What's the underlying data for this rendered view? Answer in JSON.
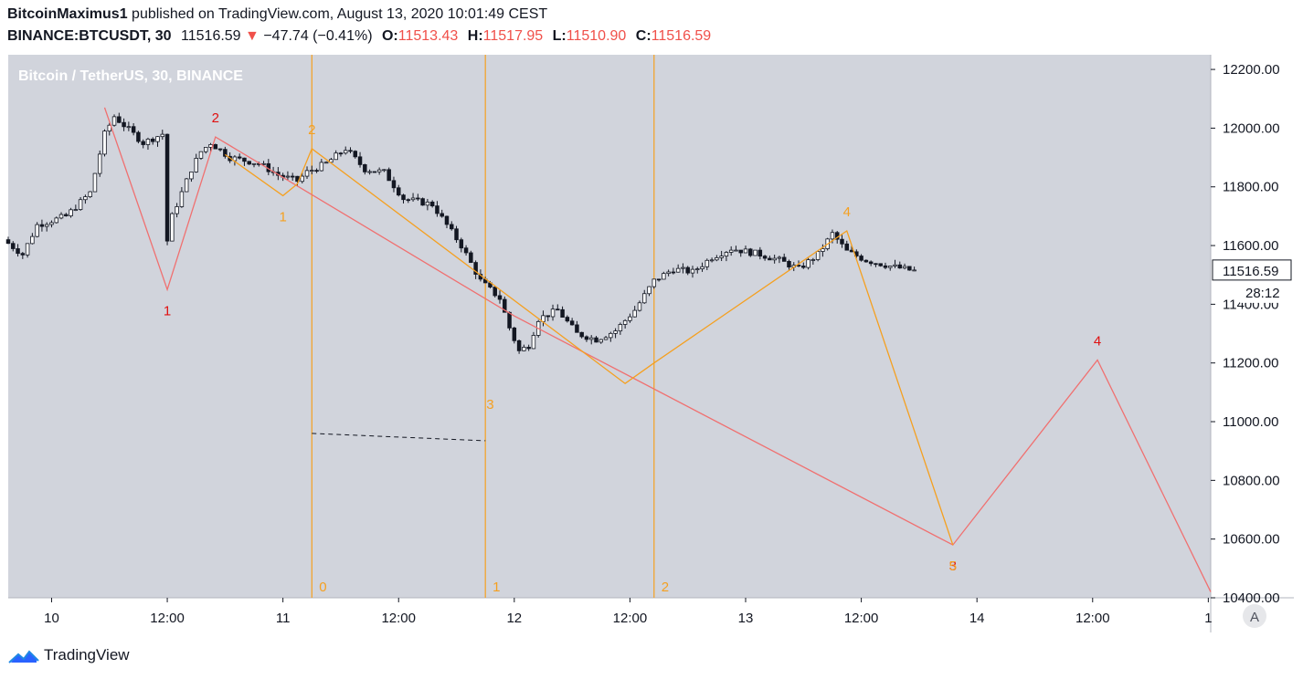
{
  "header": {
    "author": "BitcoinMaximus1",
    "published_text": "published on TradingView.com, August 13, 2020 10:01:49 CEST",
    "symbol": "BINANCE:BTCUSDT, 30",
    "last_price": "11516.59",
    "change_arrow": "▼",
    "change": "−47.74 (−0.41%)",
    "o_label": "O:",
    "o_value": "11513.43",
    "h_label": "H:",
    "h_value": "11517.95",
    "l_label": "L:",
    "l_value": "11510.90",
    "c_label": "C:",
    "c_value": "11516.59"
  },
  "footer": {
    "brand": "TradingView"
  },
  "colors": {
    "plot_bg": "#d1d4dc",
    "red_wave": "#f07070",
    "orange_wave": "#f5a020",
    "down_red": "#f0504a",
    "candle": "#131722"
  },
  "chart_data": {
    "type": "candlestick",
    "title": "Bitcoin / TetherUS, 30, BINANCE",
    "y_axis": {
      "range": [
        10400,
        12250
      ],
      "ticks": [
        "10400.00",
        "10600.00",
        "10800.00",
        "11000.00",
        "11200.00",
        "11400.00",
        "11600.00",
        "11800.00",
        "12000.00",
        "12200.00"
      ],
      "last_price_label": "11516.59",
      "countdown_label": "28:12"
    },
    "x_axis": {
      "range": [
        "2020-08-09T19:30",
        "2020-08-15T00:15"
      ],
      "ticks": [
        {
          "t": "2020-08-10T00:00",
          "label": "10"
        },
        {
          "t": "2020-08-10T12:00",
          "label": "12:00"
        },
        {
          "t": "2020-08-11T00:00",
          "label": "11"
        },
        {
          "t": "2020-08-11T12:00",
          "label": "12:00"
        },
        {
          "t": "2020-08-12T00:00",
          "label": "12"
        },
        {
          "t": "2020-08-12T12:00",
          "label": "12:00"
        },
        {
          "t": "2020-08-13T00:00",
          "label": "13"
        },
        {
          "t": "2020-08-13T12:00",
          "label": "12:00"
        },
        {
          "t": "2020-08-14T00:00",
          "label": "14"
        },
        {
          "t": "2020-08-14T12:00",
          "label": "12:00"
        },
        {
          "t": "2020-08-15T00:00",
          "label": "1"
        }
      ],
      "auto_scale_label": "A"
    },
    "price_path": [
      [
        "2020-08-09T19:30",
        11620
      ],
      [
        "2020-08-09T21:30",
        11570
      ],
      [
        "2020-08-09T23:00",
        11670
      ],
      [
        "2020-08-10T02:00",
        11700
      ],
      [
        "2020-08-10T04:30",
        11780
      ],
      [
        "2020-08-10T06:00",
        11980
      ],
      [
        "2020-08-10T07:00",
        12040
      ],
      [
        "2020-08-10T08:00",
        12010
      ],
      [
        "2020-08-10T10:00",
        11950
      ],
      [
        "2020-08-10T12:00",
        11980
      ],
      [
        "2020-08-10T12:10",
        11560
      ],
      [
        "2020-08-10T13:00",
        11700
      ],
      [
        "2020-08-10T15:00",
        11860
      ],
      [
        "2020-08-10T16:00",
        11920
      ],
      [
        "2020-08-10T17:00",
        11950
      ],
      [
        "2020-08-10T19:00",
        11900
      ],
      [
        "2020-08-10T22:00",
        11880
      ],
      [
        "2020-08-11T00:00",
        11840
      ],
      [
        "2020-08-11T02:00",
        11820
      ],
      [
        "2020-08-11T03:00",
        11850
      ],
      [
        "2020-08-11T05:00",
        11880
      ],
      [
        "2020-08-11T07:00",
        11930
      ],
      [
        "2020-08-11T09:00",
        11860
      ],
      [
        "2020-08-11T11:00",
        11850
      ],
      [
        "2020-08-11T13:00",
        11760
      ],
      [
        "2020-08-11T16:00",
        11740
      ],
      [
        "2020-08-11T19:00",
        11600
      ],
      [
        "2020-08-11T21:00",
        11480
      ],
      [
        "2020-08-11T23:00",
        11420
      ],
      [
        "2020-08-12T00:00",
        11320
      ],
      [
        "2020-08-12T01:00",
        11240
      ],
      [
        "2020-08-12T02:00",
        11260
      ],
      [
        "2020-08-12T03:00",
        11350
      ],
      [
        "2020-08-12T05:00",
        11380
      ],
      [
        "2020-08-12T07:00",
        11300
      ],
      [
        "2020-08-12T09:00",
        11280
      ],
      [
        "2020-08-12T11:00",
        11310
      ],
      [
        "2020-08-12T13:00",
        11380
      ],
      [
        "2020-08-12T15:00",
        11480
      ],
      [
        "2020-08-12T17:00",
        11520
      ],
      [
        "2020-08-12T19:00",
        11510
      ],
      [
        "2020-08-12T21:00",
        11560
      ],
      [
        "2020-08-12T23:00",
        11590
      ],
      [
        "2020-08-13T02:00",
        11570
      ],
      [
        "2020-08-13T04:00",
        11550
      ],
      [
        "2020-08-13T06:00",
        11520
      ],
      [
        "2020-08-13T08:00",
        11570
      ],
      [
        "2020-08-13T09:30",
        11640
      ],
      [
        "2020-08-13T11:00",
        11580
      ],
      [
        "2020-08-13T13:00",
        11550
      ],
      [
        "2020-08-13T15:30",
        11530
      ],
      [
        "2020-08-13T17:30",
        11516.59
      ]
    ],
    "wave_red": {
      "points": [
        [
          "2020-08-10T05:30",
          12070
        ],
        [
          "2020-08-10T12:00",
          11450
        ],
        [
          "2020-08-10T17:00",
          11970
        ],
        [
          "2020-08-12T00:00",
          11360
        ],
        [
          "2020-08-13T21:30",
          10580
        ],
        [
          "2020-08-14T12:30",
          11210
        ],
        [
          "2020-08-15T00:15",
          10420
        ]
      ],
      "labels": [
        {
          "t": "2020-08-10T12:00",
          "p": 11450,
          "text": "1",
          "pos": "below"
        },
        {
          "t": "2020-08-10T17:00",
          "p": 11970,
          "text": "2",
          "pos": "above"
        },
        {
          "t": "2020-08-13T21:30",
          "p": 10580,
          "text": "3",
          "pos": "below"
        },
        {
          "t": "2020-08-14T12:30",
          "p": 11210,
          "text": "4",
          "pos": "above"
        }
      ]
    },
    "wave_orange": {
      "points": [
        [
          "2020-08-10T18:00",
          11910
        ],
        [
          "2020-08-11T00:00",
          11770
        ],
        [
          "2020-08-11T01:30",
          11810
        ],
        [
          "2020-08-11T03:00",
          11930
        ],
        [
          "2020-08-12T11:30",
          11130
        ],
        [
          "2020-08-12T14:30",
          11200
        ],
        [
          "2020-08-13T10:30",
          11650
        ],
        [
          "2020-08-13T21:30",
          10580
        ]
      ],
      "labels": [
        {
          "t": "2020-08-11T00:00",
          "p": 11770,
          "text": "1",
          "pos": "below"
        },
        {
          "t": "2020-08-11T03:00",
          "p": 11930,
          "text": "2",
          "pos": "above"
        },
        {
          "t": "2020-08-11T21:30",
          "p": 11130,
          "text": "3",
          "pos": "below"
        },
        {
          "t": "2020-08-13T10:30",
          "p": 11650,
          "text": "4",
          "pos": "above"
        },
        {
          "t": "2020-08-13T21:30",
          "p": 10580,
          "text": "5",
          "pos": "below"
        }
      ]
    },
    "time_cycles": [
      {
        "t": "2020-08-11T03:00",
        "label": "0"
      },
      {
        "t": "2020-08-11T21:00",
        "label": "1"
      },
      {
        "t": "2020-08-12T14:30",
        "label": "2"
      }
    ],
    "dashed_line": {
      "from": [
        "2020-08-11T03:00",
        10960
      ],
      "to": [
        "2020-08-11T21:00",
        10935
      ]
    }
  }
}
